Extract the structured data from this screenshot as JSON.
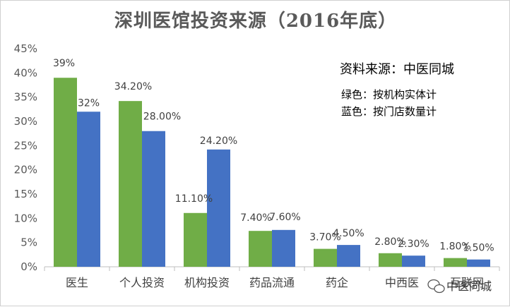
{
  "chart_data": {
    "type": "bar",
    "title": "深圳医馆投资来源（2016年底）",
    "categories": [
      "医生",
      "个人投资",
      "机构投资",
      "药品流通",
      "药企",
      "中西医",
      "互联网"
    ],
    "series": [
      {
        "name": "按机构实体计",
        "color": "#70ad47",
        "values": [
          39,
          34.2,
          11.1,
          7.4,
          3.7,
          2.8,
          1.8
        ]
      },
      {
        "name": "按门店数量计",
        "color": "#4472c4",
        "values": [
          32,
          28.0,
          24.2,
          7.6,
          4.5,
          2.3,
          1.5
        ]
      }
    ],
    "data_labels": [
      [
        "39%",
        "34.20%",
        "11.10%",
        "7.40%",
        "3.70%",
        "2.80%",
        "1.80%"
      ],
      [
        "32%",
        "28.00%",
        "24.20%",
        "7.60%",
        "4.50%",
        "2.30%",
        "1.50%"
      ]
    ],
    "yticks": [
      "0%",
      "5%",
      "10%",
      "15%",
      "20%",
      "25%",
      "30%",
      "35%",
      "40%",
      "45%"
    ],
    "ylim": [
      0,
      45
    ],
    "grid": false,
    "annotations": {
      "source": "资料来源：中医同城",
      "legend_green": "绿色：按机构实体计",
      "legend_blue": "蓝色：按门店数量计"
    }
  },
  "watermark": {
    "text": "中医同城",
    "icon": "wechat-icon"
  }
}
